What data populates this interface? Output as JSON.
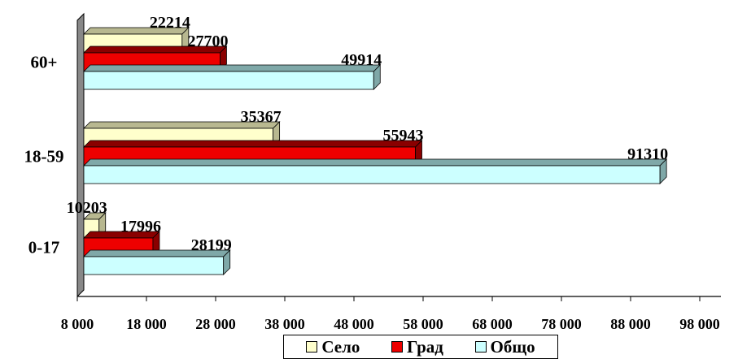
{
  "chart_data": {
    "type": "bar",
    "orientation": "horizontal",
    "categories": [
      "0-17",
      "18-59",
      "60+"
    ],
    "series": [
      {
        "name": "Село",
        "values": [
          10203,
          35367,
          22214
        ],
        "color": "#ffffcc",
        "side_color": "#b8b890"
      },
      {
        "name": "Град",
        "values": [
          17996,
          55943,
          27700
        ],
        "color": "#ee0000",
        "side_color": "#8a0000"
      },
      {
        "name": "Общо",
        "values": [
          28199,
          91310,
          49914
        ],
        "color": "#ccffff",
        "side_color": "#7fa8a8"
      }
    ],
    "x_ticks": [
      8000,
      18000,
      28000,
      38000,
      48000,
      58000,
      68000,
      78000,
      88000,
      98000
    ],
    "x_tick_labels": [
      "8 000",
      "18 000",
      "28 000",
      "38 000",
      "48 000",
      "58 000",
      "68 000",
      "78 000",
      "88 000",
      "98 000"
    ],
    "xlim": [
      8000,
      98000
    ],
    "legend_position": "bottom",
    "grid": false,
    "style": "3d"
  }
}
